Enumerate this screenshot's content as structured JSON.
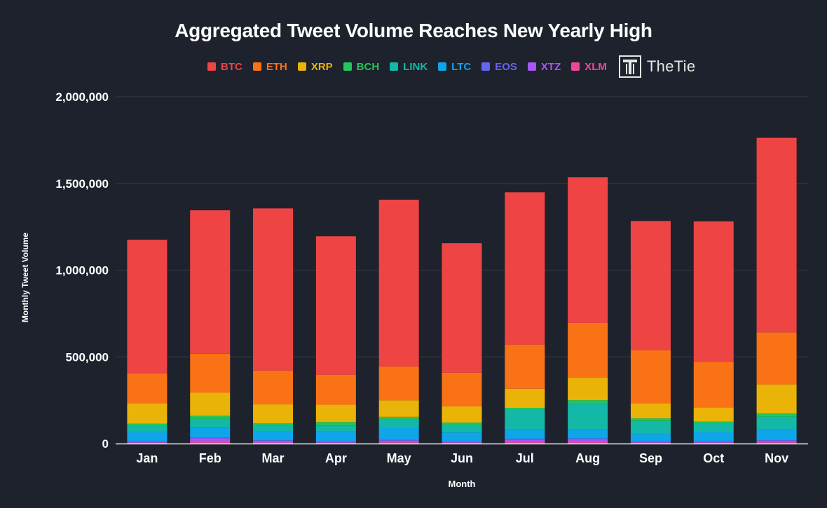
{
  "chart_data": {
    "type": "bar",
    "stacked": true,
    "title": "Aggregated Tweet Volume Reaches New Yearly High",
    "xlabel": "Month",
    "ylabel": "Monthly Tweet Volume",
    "ylim": [
      0,
      2000000
    ],
    "y_ticks": [
      0,
      500000,
      1000000,
      1500000,
      2000000
    ],
    "y_tick_labels": [
      "0",
      "500,000",
      "1,000,000",
      "1,500,000",
      "2,000,000"
    ],
    "categories": [
      "Jan",
      "Feb",
      "Mar",
      "Apr",
      "May",
      "Jun",
      "Jul",
      "Aug",
      "Sep",
      "Oct",
      "Nov"
    ],
    "legend_position": "top-center",
    "grid": true,
    "series": [
      {
        "name": "XLM",
        "color": "#ec4899",
        "values": [
          5000,
          8000,
          6000,
          5000,
          7000,
          5000,
          8000,
          8000,
          5000,
          5000,
          7000
        ]
      },
      {
        "name": "XTZ",
        "color": "#a855f7",
        "values": [
          5000,
          22000,
          8000,
          5000,
          10000,
          5000,
          15000,
          17000,
          5000,
          5000,
          8000
        ]
      },
      {
        "name": "EOS",
        "color": "#6366f1",
        "values": [
          3000,
          5000,
          5000,
          4000,
          5000,
          4000,
          5000,
          5000,
          3000,
          3000,
          5000
        ]
      },
      {
        "name": "LTC",
        "color": "#0ea5e9",
        "values": [
          52000,
          57000,
          50000,
          55000,
          67000,
          50000,
          50000,
          50000,
          42000,
          52000,
          60000
        ]
      },
      {
        "name": "LINK",
        "color": "#14b8a6",
        "values": [
          40000,
          50000,
          40000,
          35000,
          50000,
          45000,
          120000,
          150000,
          75000,
          50000,
          75000
        ]
      },
      {
        "name": "BCH",
        "color": "#22c55e",
        "values": [
          10000,
          18000,
          7000,
          20000,
          15000,
          12000,
          8000,
          20000,
          15000,
          12000,
          18000
        ]
      },
      {
        "name": "XRP",
        "color": "#eab308",
        "values": [
          118000,
          133000,
          110000,
          100000,
          95000,
          93000,
          110000,
          130000,
          88000,
          82000,
          168000
        ]
      },
      {
        "name": "ETH",
        "color": "#f97316",
        "values": [
          172000,
          225000,
          195000,
          173000,
          195000,
          195000,
          255000,
          315000,
          305000,
          262000,
          300000
        ]
      },
      {
        "name": "BTC",
        "color": "#ef4444",
        "values": [
          770000,
          827000,
          935000,
          798000,
          962000,
          746000,
          878000,
          840000,
          745000,
          810000,
          1122000
        ]
      }
    ]
  },
  "legend": [
    {
      "name": "BTC",
      "color": "#ef4444"
    },
    {
      "name": "ETH",
      "color": "#f97316"
    },
    {
      "name": "XRP",
      "color": "#eab308"
    },
    {
      "name": "BCH",
      "color": "#22c55e"
    },
    {
      "name": "LINK",
      "color": "#14b8a6"
    },
    {
      "name": "LTC",
      "color": "#0ea5e9"
    },
    {
      "name": "EOS",
      "color": "#6366f1"
    },
    {
      "name": "XTZ",
      "color": "#a855f7"
    },
    {
      "name": "XLM",
      "color": "#ec4899"
    }
  ],
  "brand": {
    "name": "TheTie"
  },
  "colors": {
    "background": "#1e222d",
    "grid": "#363b47",
    "axis": "#e6e6e6"
  }
}
